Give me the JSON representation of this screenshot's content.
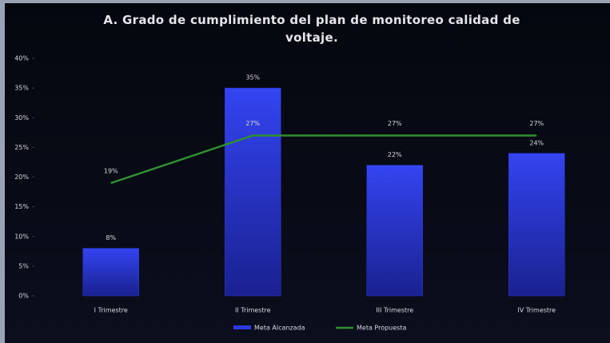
{
  "chart_data": {
    "type": "bar",
    "title": "A. Grado de cumplimiento del plan de monitoreo calidad de voltaje.",
    "categories": [
      "I Trimestre",
      "II Trimestre",
      "III Trimestre",
      "IV Trimestre"
    ],
    "series": [
      {
        "name": "Meta Alcanzada",
        "type": "bar",
        "color": "#2b3ae0",
        "values": [
          8,
          35,
          22,
          24
        ],
        "value_labels": [
          "8%",
          "35%",
          "22%",
          "24%"
        ]
      },
      {
        "name": "Meta Propuesta",
        "type": "line",
        "color": "#2f8f2f",
        "values": [
          19,
          27,
          27,
          27
        ],
        "value_labels": [
          "19%",
          "27%",
          "27%",
          "27%"
        ]
      }
    ],
    "ylim": [
      0,
      40
    ],
    "yticks": [
      {
        "value": 0,
        "label": "0%"
      },
      {
        "value": 5,
        "label": "5%"
      },
      {
        "value": 10,
        "label": "10%"
      },
      {
        "value": 15,
        "label": "15%"
      },
      {
        "value": 20,
        "label": "20%"
      },
      {
        "value": 25,
        "label": "25%"
      },
      {
        "value": 30,
        "label": "30%"
      },
      {
        "value": 35,
        "label": "35%"
      },
      {
        "value": 40,
        "label": "40%"
      }
    ],
    "legend": "bottom"
  }
}
